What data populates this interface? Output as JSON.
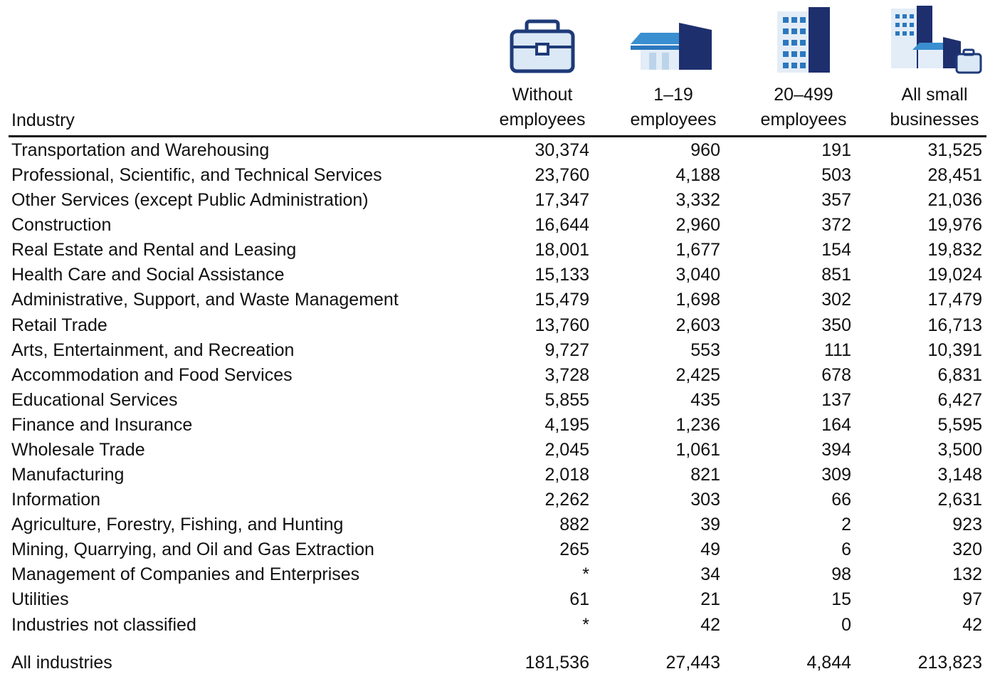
{
  "table": {
    "header": [
      "Industry",
      "Without employees",
      "1–19 employees",
      "20–499 employees",
      "All small businesses"
    ],
    "rows": [
      [
        "Transportation and Warehousing",
        "30,374",
        "960",
        "191",
        "31,525"
      ],
      [
        "Professional, Scientific, and Technical Services",
        "23,760",
        "4,188",
        "503",
        "28,451"
      ],
      [
        "Other Services (except Public Administration)",
        "17,347",
        "3,332",
        "357",
        "21,036"
      ],
      [
        "Construction",
        "16,644",
        "2,960",
        "372",
        "19,976"
      ],
      [
        "Real Estate and Rental and Leasing",
        "18,001",
        "1,677",
        "154",
        "19,832"
      ],
      [
        "Health Care and Social Assistance",
        "15,133",
        "3,040",
        "851",
        "19,024"
      ],
      [
        "Administrative, Support, and Waste Management",
        "15,479",
        "1,698",
        "302",
        "17,479"
      ],
      [
        "Retail Trade",
        "13,760",
        "2,603",
        "350",
        "16,713"
      ],
      [
        "Arts, Entertainment, and Recreation",
        "9,727",
        "553",
        "111",
        "10,391"
      ],
      [
        "Accommodation and Food Services",
        "3,728",
        "2,425",
        "678",
        "6,831"
      ],
      [
        "Educational Services",
        "5,855",
        "435",
        "137",
        "6,427"
      ],
      [
        "Finance and Insurance",
        "4,195",
        "1,236",
        "164",
        "5,595"
      ],
      [
        "Wholesale Trade",
        "2,045",
        "1,061",
        "394",
        "3,500"
      ],
      [
        "Manufacturing",
        "2,018",
        "821",
        "309",
        "3,148"
      ],
      [
        "Information",
        "2,262",
        "303",
        "66",
        "2,631"
      ],
      [
        "Agriculture, Forestry, Fishing, and Hunting",
        "882",
        "39",
        "2",
        "923"
      ],
      [
        "Mining, Quarrying, and Oil and Gas Extraction",
        "265",
        "49",
        "6",
        "320"
      ],
      [
        "Management of Companies and Enterprises",
        "*",
        "34",
        "98",
        "132"
      ],
      [
        "Utilities",
        "61",
        "21",
        "15",
        "97"
      ],
      [
        "Industries not classified",
        "*",
        "42",
        "0",
        "42"
      ]
    ],
    "total": [
      "All industries",
      "181,536",
      "27,443",
      "4,844",
      "213,823"
    ]
  }
}
